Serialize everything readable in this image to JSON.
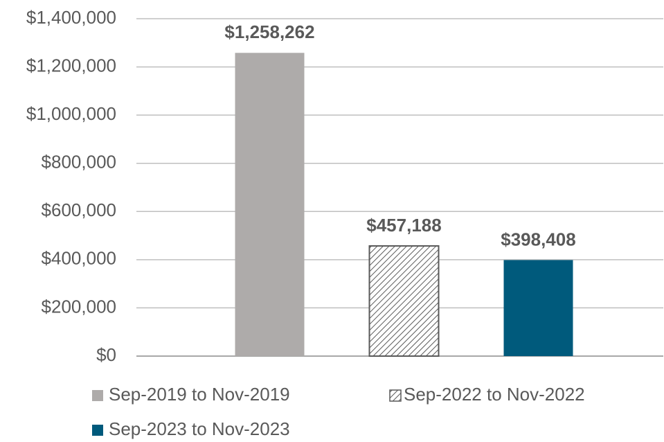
{
  "chart_data": {
    "type": "bar",
    "categories": [
      null
    ],
    "series": [
      {
        "name": "Sep-2019 to Nov-2019",
        "color": "#aeabaa",
        "values": [
          1258262
        ],
        "value_labels": [
          "$1,258,262"
        ]
      },
      {
        "name": "Sep-2022 to Nov-2022",
        "color": "#595959",
        "pattern": "hatch",
        "values": [
          457188
        ],
        "value_labels": [
          "$457,188"
        ]
      },
      {
        "name": "Sep-2023 to Nov-2023",
        "color": "#005a7c",
        "values": [
          398408
        ],
        "value_labels": [
          "$398,408"
        ]
      }
    ],
    "ylim": [
      0,
      1400000
    ],
    "yticks": [
      {
        "value": 0,
        "label": "$0"
      },
      {
        "value": 200000,
        "label": "$200,000"
      },
      {
        "value": 400000,
        "label": "$400,000"
      },
      {
        "value": 600000,
        "label": "$600,000"
      },
      {
        "value": 800000,
        "label": "$800,000"
      },
      {
        "value": 1000000,
        "label": "$1,000,000"
      },
      {
        "value": 1200000,
        "label": "$1,200,000"
      },
      {
        "value": 1400000,
        "label": "$1,400,000"
      }
    ],
    "grid": true
  }
}
